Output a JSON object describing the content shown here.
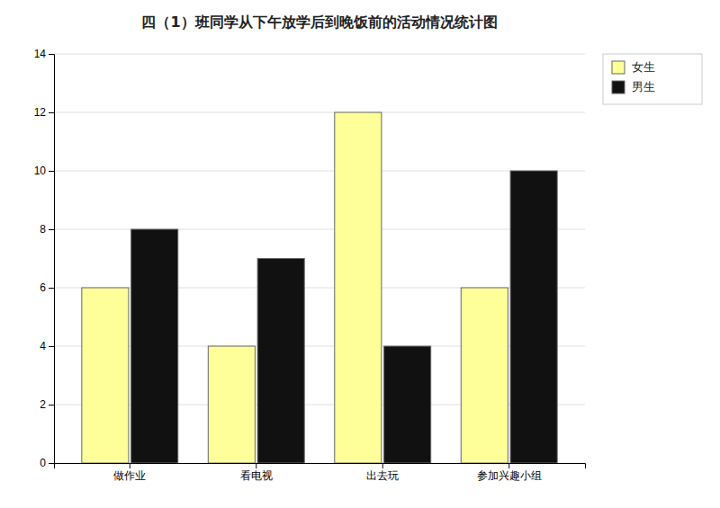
{
  "chart_data": {
    "type": "bar",
    "title": "四（1）班同学从下午放学后到晚饭前的活动情况统计图",
    "categories": [
      "做作业",
      "看电视",
      "出去玩",
      "参加兴趣小组"
    ],
    "series": [
      {
        "name": "女生",
        "color": "#ffff99",
        "values": [
          6,
          4,
          12,
          6
        ]
      },
      {
        "name": "男生",
        "color": "#111111",
        "values": [
          8,
          7,
          4,
          10
        ]
      }
    ],
    "ylim": [
      0,
      14
    ],
    "yticks": [
      0,
      2,
      4,
      6,
      8,
      10,
      12,
      14
    ],
    "grid": true,
    "legend": "upper right"
  }
}
